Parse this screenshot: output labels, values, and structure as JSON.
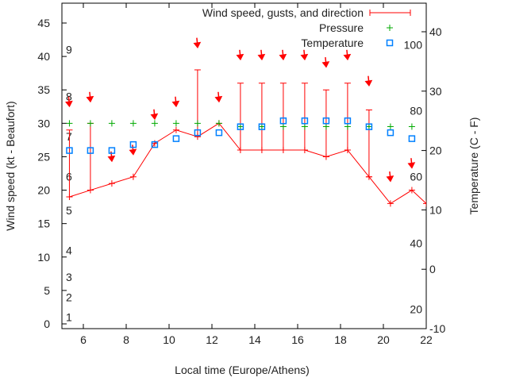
{
  "chart_data": {
    "type": "line",
    "xlabel": "Local time (Europe/Athens)",
    "ylabel": "Wind speed (kt - Beaufort)",
    "y2label": "Temperature (C - F)",
    "xlim": [
      5,
      22
    ],
    "ylim": [
      -1,
      45
    ],
    "y2lim": [
      -10,
      45
    ],
    "xticks": [
      6,
      8,
      10,
      12,
      14,
      16,
      18,
      20,
      22
    ],
    "yticks": [
      0,
      5,
      10,
      15,
      20,
      25,
      30,
      35,
      40,
      45
    ],
    "y2ticks": [
      -10,
      0,
      10,
      20,
      30,
      40
    ],
    "beaufort_labels": [
      {
        "label": "1",
        "kt": 1
      },
      {
        "label": "2",
        "kt": 4
      },
      {
        "label": "3",
        "kt": 7
      },
      {
        "label": "4",
        "kt": 11
      },
      {
        "label": "5",
        "kt": 17
      },
      {
        "label": "6",
        "kt": 22
      },
      {
        "label": "7",
        "kt": 28
      },
      {
        "label": "8",
        "kt": 34
      },
      {
        "label": "9",
        "kt": 41
      }
    ],
    "fahrenheit_labels": [
      {
        "label": "20",
        "c": -6.7
      },
      {
        "label": "40",
        "c": 4.4
      },
      {
        "label": "60",
        "c": 15.6
      },
      {
        "label": "80",
        "c": 26.7
      },
      {
        "label": "100",
        "c": 37.8
      }
    ],
    "legend": {
      "position": "top-right",
      "entries": [
        "Wind speed, gusts, and direction",
        "Pressure",
        "Temperature"
      ]
    },
    "x": [
      5.35,
      6.33,
      7.33,
      8.33,
      9.33,
      10.33,
      11.33,
      12.33,
      13.33,
      14.33,
      15.33,
      16.33,
      17.33,
      18.33,
      19.33,
      20.33,
      21.33,
      22
    ],
    "series": [
      {
        "name": "Wind speed",
        "color": "#ff0000",
        "values": [
          19,
          20,
          21,
          22,
          27,
          29,
          28,
          30,
          26,
          26,
          26,
          26,
          25,
          26,
          22,
          18,
          20,
          18
        ],
        "gusts": [
          29,
          30,
          null,
          null,
          null,
          null,
          38,
          null,
          36,
          36,
          36,
          36,
          35,
          36,
          32,
          null,
          null,
          null
        ],
        "arrow_kt": [
          32.8,
          33.5,
          24.6,
          25.6,
          30.9,
          32.8,
          41.6,
          33.5,
          39.8,
          39.8,
          39.8,
          39.8,
          38.7,
          39.8,
          35.9,
          21.6,
          23.6,
          null
        ]
      },
      {
        "name": "Pressure",
        "color": "#00aa00",
        "values": [
          30,
          30,
          30,
          30,
          30,
          30,
          30,
          30,
          29.5,
          29.5,
          29.5,
          29.5,
          29.5,
          29.5,
          29.5,
          29.5,
          29.5,
          null
        ]
      },
      {
        "name": "Temperature",
        "color": "#0080ff",
        "axis": "y2",
        "values": [
          20,
          20,
          20,
          21,
          21,
          22,
          23,
          23,
          24,
          24,
          25,
          25,
          25,
          25,
          24,
          23,
          22,
          null
        ]
      }
    ]
  }
}
